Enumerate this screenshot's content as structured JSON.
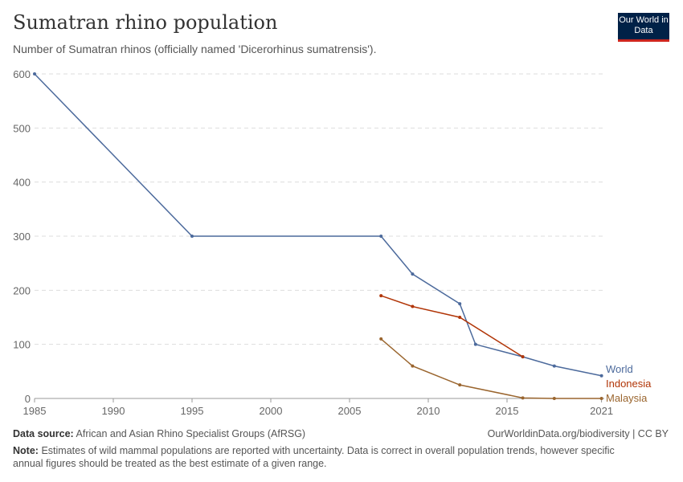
{
  "header": {
    "title": "Sumatran rhino population",
    "subtitle": "Number of Sumatran rhinos (officially named 'Dicerorhinus sumatrensis').",
    "logo": "Our World in Data"
  },
  "footer": {
    "source_label": "Data source:",
    "source": "African and Asian Rhino Specialist Groups (AfRSG)",
    "url": "OurWorldinData.org/biodiversity | CC BY",
    "note_label": "Note:",
    "note": "Estimates of wild mammal populations are reported with uncertainty. Data is correct in overall population trends, however specific annual figures should be treated as the best estimate of a given range."
  },
  "chart_data": {
    "type": "line",
    "title": "Sumatran rhino population",
    "xlim": [
      1984,
      2021
    ],
    "ylim": [
      0,
      600
    ],
    "x_ticks": [
      1985,
      1990,
      1995,
      2000,
      2005,
      2010,
      2015,
      2021
    ],
    "y_ticks": [
      0,
      100,
      200,
      300,
      400,
      500,
      600
    ],
    "grid": "horizontal dashed",
    "legend": "inline-right",
    "series": [
      {
        "name": "World",
        "color": "#4c6a9c",
        "points": [
          [
            1984,
            600
          ],
          [
            1995,
            300
          ],
          [
            2007,
            300
          ],
          [
            2009,
            230
          ],
          [
            2012,
            175
          ],
          [
            2013,
            100
          ],
          [
            2016,
            77
          ],
          [
            2018,
            60
          ],
          [
            2021,
            42
          ]
        ]
      },
      {
        "name": "Indonesia",
        "color": "#b13507",
        "points": [
          [
            2007,
            190
          ],
          [
            2009,
            170
          ],
          [
            2012,
            150
          ],
          [
            2016,
            77
          ]
        ]
      },
      {
        "name": "Malaysia",
        "color": "#9a652e",
        "points": [
          [
            2007,
            110
          ],
          [
            2009,
            60
          ],
          [
            2012,
            25
          ],
          [
            2016,
            1
          ],
          [
            2018,
            0
          ],
          [
            2021,
            0
          ]
        ]
      }
    ]
  }
}
